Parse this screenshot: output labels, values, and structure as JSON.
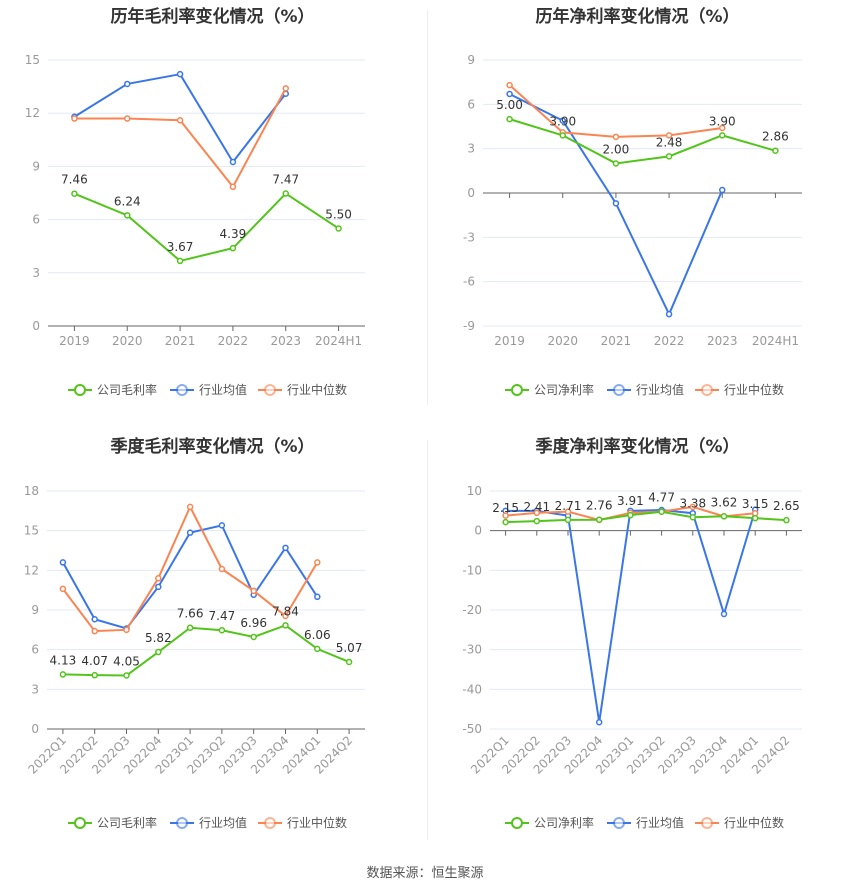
{
  "footer": "数据来源：恒生聚源",
  "colors": {
    "company": "#52c41a",
    "avg": "#3a76e8",
    "median": "#fa8552",
    "grid": "#e3e8f5",
    "axis": "#666",
    "tick": "#999"
  },
  "chart_data": [
    {
      "type": "line",
      "title": "历年毛利率变化情况（%）",
      "categories": [
        "2019",
        "2020",
        "2021",
        "2022",
        "2023",
        "2024H1"
      ],
      "ylim": [
        0,
        15
      ],
      "yticks": [
        0,
        3,
        6,
        9,
        12,
        15
      ],
      "grid": true,
      "legend": "bottom",
      "series": [
        {
          "name": "公司毛利率",
          "values": [
            7.46,
            6.24,
            3.67,
            4.39,
            7.47,
            5.5
          ],
          "labels": true
        },
        {
          "name": "行业均值",
          "values": [
            11.8,
            13.65,
            14.2,
            9.25,
            13.1,
            null
          ]
        },
        {
          "name": "行业中位数",
          "values": [
            11.7,
            11.7,
            11.6,
            7.85,
            13.4,
            null
          ]
        }
      ]
    },
    {
      "type": "line",
      "title": "历年净利率变化情况（%）",
      "categories": [
        "2019",
        "2020",
        "2021",
        "2022",
        "2023",
        "2024H1"
      ],
      "ylim": [
        -9,
        9
      ],
      "yticks": [
        -9,
        -6,
        -3,
        0,
        3,
        6,
        9
      ],
      "grid": true,
      "legend": "bottom",
      "series": [
        {
          "name": "公司净利率",
          "values": [
            5.0,
            3.9,
            2.0,
            2.48,
            3.9,
            2.86
          ],
          "labels": true
        },
        {
          "name": "行业均值",
          "values": [
            6.7,
            4.9,
            -0.7,
            -8.2,
            0.2,
            null
          ]
        },
        {
          "name": "行业中位数",
          "values": [
            7.3,
            4.1,
            3.8,
            3.9,
            4.4,
            null
          ]
        }
      ]
    },
    {
      "type": "line",
      "title": "季度毛利率变化情况（%）",
      "categories": [
        "2022Q1",
        "2022Q2",
        "2022Q3",
        "2022Q4",
        "2023Q1",
        "2023Q2",
        "2023Q3",
        "2023Q4",
        "2024Q1",
        "2024Q2"
      ],
      "ylim": [
        0,
        18
      ],
      "yticks": [
        0,
        3,
        6,
        9,
        12,
        15,
        18
      ],
      "grid": true,
      "legend": "bottom",
      "series": [
        {
          "name": "公司毛利率",
          "values": [
            4.13,
            4.07,
            4.05,
            5.82,
            7.66,
            7.47,
            6.96,
            7.84,
            6.06,
            5.07
          ],
          "labels": true
        },
        {
          "name": "行业均值",
          "values": [
            12.6,
            8.3,
            7.6,
            10.75,
            14.85,
            15.4,
            10.15,
            13.7,
            10.0,
            null
          ]
        },
        {
          "name": "行业中位数",
          "values": [
            10.6,
            7.4,
            7.5,
            11.4,
            16.8,
            12.1,
            10.45,
            8.55,
            12.6,
            null
          ]
        }
      ]
    },
    {
      "type": "line",
      "title": "季度净利率变化情况（%）",
      "categories": [
        "2022Q1",
        "2022Q2",
        "2022Q3",
        "2022Q4",
        "2023Q1",
        "2023Q2",
        "2023Q3",
        "2023Q4",
        "2024Q1",
        "2024Q2"
      ],
      "ylim": [
        -50,
        10
      ],
      "yticks": [
        -50,
        -40,
        -30,
        -20,
        -10,
        0,
        10
      ],
      "grid": true,
      "legend": "bottom",
      "series": [
        {
          "name": "公司净利率",
          "values": [
            2.15,
            2.41,
            2.71,
            2.76,
            3.91,
            4.77,
            3.38,
            3.62,
            3.15,
            2.65
          ],
          "labels": true
        },
        {
          "name": "行业均值",
          "values": [
            5.0,
            5.0,
            3.8,
            -48.3,
            5.0,
            5.2,
            4.4,
            -21.0,
            5.3,
            null
          ]
        },
        {
          "name": "行业中位数",
          "values": [
            3.8,
            4.5,
            4.8,
            2.7,
            4.5,
            4.8,
            6.0,
            3.6,
            4.4,
            null
          ]
        }
      ]
    }
  ]
}
